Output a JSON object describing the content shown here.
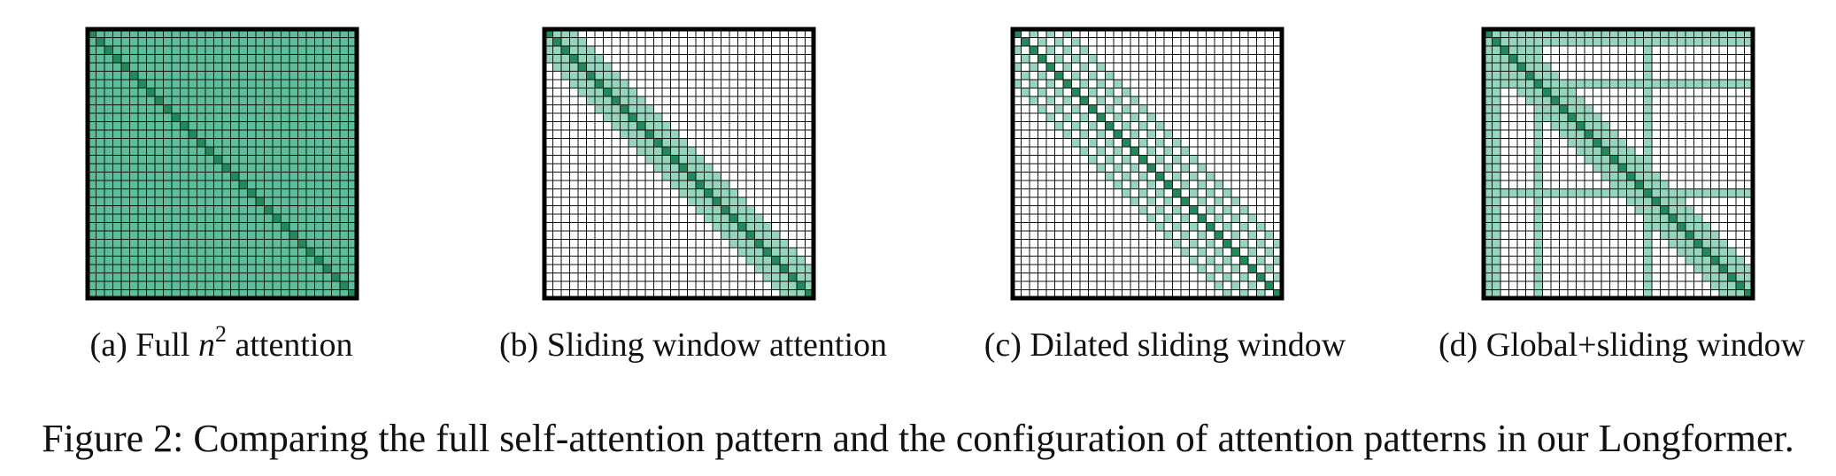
{
  "panels": [
    {
      "id": "a",
      "pattern": "full",
      "caption_prefix": "(a) Full ",
      "caption_math": "n",
      "caption_sup": "2",
      "caption_suffix": " attention"
    },
    {
      "id": "b",
      "pattern": "sliding",
      "caption_text": "(b) Sliding window attention"
    },
    {
      "id": "c",
      "pattern": "dilated",
      "caption_text": "(c) Dilated sliding window"
    },
    {
      "id": "d",
      "pattern": "global",
      "caption_text": "(d) Global+sliding window"
    }
  ],
  "matrix": {
    "size": 32,
    "window_half_width": 3,
    "dilation": 2,
    "global_indices": [
      0,
      1,
      6,
      19
    ]
  },
  "colors": {
    "diagonal": "#1f8a5a",
    "full_cell": "#5cbf9c",
    "window_cell": "#93d6bd",
    "empty_cell": "#ffffff",
    "grid_line": "#111111",
    "border": "#000000"
  },
  "figure_caption": "Figure 2: Comparing the full self-attention pattern and the configuration of attention patterns in our Longformer."
}
